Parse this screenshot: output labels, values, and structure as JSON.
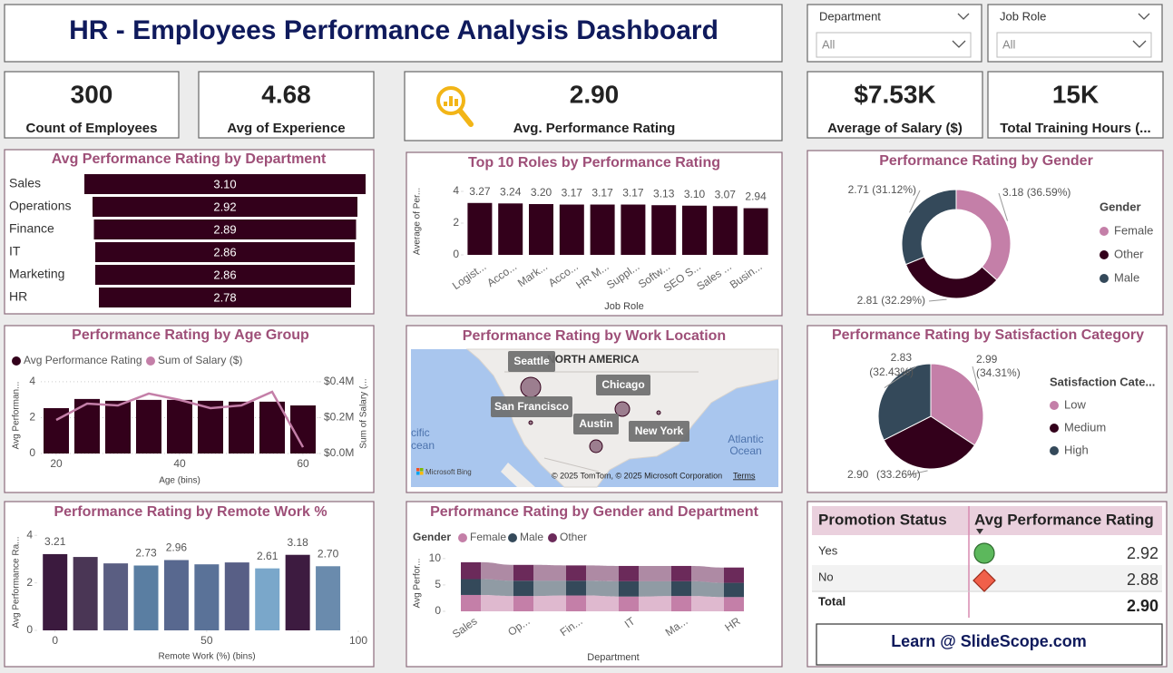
{
  "header": {
    "title": "HR - Employees Performance Analysis Dashboard"
  },
  "slicers": [
    {
      "label": "Department",
      "value": "All"
    },
    {
      "label": "Job Role",
      "value": "All"
    }
  ],
  "kpis": [
    {
      "value": "300",
      "label": "Count of Employees"
    },
    {
      "value": "4.68",
      "label": "Avg of Experience"
    },
    {
      "value": "2.90",
      "label": "Avg. Performance Rating"
    },
    {
      "value": "$7.53K",
      "label": "Average of Salary ($)"
    },
    {
      "value": "15K",
      "label": "Total Training Hours (..."
    }
  ],
  "chart_data": [
    {
      "type": "funnel",
      "title": "Avg Performance Rating by Department",
      "categories": [
        "Sales",
        "Operations",
        "Finance",
        "IT",
        "Marketing",
        "HR"
      ],
      "values": [
        3.1,
        2.92,
        2.89,
        2.86,
        2.86,
        2.78
      ],
      "value_labels": [
        "3.10",
        "2.92",
        "2.89",
        "2.86",
        "2.86",
        "2.78"
      ],
      "color": "#33001b"
    },
    {
      "type": "bar",
      "title": "Top 10 Roles by Performance Rating",
      "x_label": "Job Role",
      "y_label": "Average of Per...",
      "categories": [
        "Logist...",
        "Acco...",
        "Mark...",
        "Acco...",
        "HR M...",
        "Suppl...",
        "Softw...",
        "SEO S...",
        "Sales ...",
        "Busin..."
      ],
      "values": [
        3.27,
        3.24,
        3.2,
        3.17,
        3.17,
        3.17,
        3.13,
        3.1,
        3.07,
        2.94
      ],
      "value_labels": [
        "3.27",
        "3.24",
        "3.20",
        "3.17",
        "3.17",
        "3.17",
        "3.13",
        "3.10",
        "3.07",
        "2.94"
      ],
      "color": "#33001b",
      "ylim": [
        0,
        4.4
      ],
      "yticks": [
        0,
        2,
        4
      ]
    },
    {
      "type": "donut",
      "title": "Performance Rating by Gender",
      "legend_title": "Gender",
      "categories": [
        "Female",
        "Other",
        "Male"
      ],
      "values": [
        3.18,
        2.81,
        2.71
      ],
      "value_labels": [
        "3.18 (36.59%)",
        "2.81 (32.29%)",
        "2.71 (31.12%)"
      ],
      "colors": [
        "#c47fa8",
        "#33001b",
        "#34495a"
      ],
      "legend": "right"
    },
    {
      "type": "combo",
      "title": "Performance Rating by Age Group",
      "x_label": "Age (bins)",
      "y_label": "Avg Performan...",
      "y2_label": "Sum of Salary (...",
      "x": [
        20,
        25,
        30,
        35,
        40,
        45,
        50,
        55,
        60
      ],
      "series": [
        {
          "name": "Avg Performance Rating",
          "color": "#33001b",
          "kind": "bar",
          "values": [
            2.53,
            3.04,
            2.94,
            2.99,
            2.99,
            2.94,
            2.89,
            2.89,
            2.68
          ]
        },
        {
          "name": "Sum of Salary ($)",
          "color": "#c47fa8",
          "kind": "line",
          "axis": "y2",
          "values": [
            187000,
            278000,
            268000,
            334000,
            299000,
            253000,
            268000,
            344000,
            35000
          ]
        }
      ],
      "xlim": [
        17.5,
        62.5
      ],
      "xticks": [
        20,
        40,
        60
      ],
      "ylim": [
        0,
        4.4
      ],
      "yticks": [
        0,
        2,
        4
      ],
      "y2lim": [
        0,
        440000
      ],
      "y2ticks": [
        {
          "value": 0,
          "label": "$0.0M"
        },
        {
          "value": 200000,
          "label": "$0.2M"
        },
        {
          "value": 400000,
          "label": "$0.4M"
        }
      ],
      "grid": true,
      "legend": "top"
    },
    {
      "type": "map",
      "title": "Performance Rating by Work Location",
      "locations": [
        "Seattle",
        "San Francisco",
        "Chicago",
        "Austin",
        "New York"
      ],
      "map_labels": [
        "NORTH AMERICA",
        "cific",
        "cean",
        "Atlantic",
        "Ocean"
      ],
      "logo": "Microsoft Bing",
      "attribution": "© 2025 TomTom, © 2025 Microsoft Corporation",
      "terms": "Terms"
    },
    {
      "type": "pie",
      "title": "Performance Rating by Satisfaction Category",
      "legend_title": "Satisfaction Cate...",
      "categories": [
        "Low",
        "Medium",
        "High"
      ],
      "values": [
        2.99,
        2.9,
        2.83
      ],
      "value_labels": [
        "2.99",
        "2.90",
        "2.83"
      ],
      "percent_labels": [
        "(34.31%)",
        "(33.26%)",
        "(32.43%)"
      ],
      "colors": [
        "#c47fa8",
        "#33001b",
        "#34495a"
      ],
      "legend": "right"
    },
    {
      "type": "bar",
      "title": "Performance Rating by Remote Work %",
      "x_label": "Remote Work (%) (bins)",
      "y_label": "Avg Performance Ra...",
      "x": [
        0,
        10,
        20,
        30,
        40,
        50,
        60,
        70,
        80,
        90
      ],
      "values": [
        3.21,
        3.09,
        2.82,
        2.73,
        2.96,
        2.78,
        2.86,
        2.61,
        3.18,
        2.7
      ],
      "value_labels": [
        "3.21",
        null,
        null,
        "2.73",
        "2.96",
        null,
        null,
        "2.61",
        "3.18",
        "2.70"
      ],
      "colors": [
        "#3b1a3e",
        "#4a3655",
        "#5a5e82",
        "#5a7ea2",
        "#58688f",
        "#5a7298",
        "#585f86",
        "#7aa7ca",
        "#3d1b40",
        "#6a8bad"
      ],
      "xlim": [
        -5,
        100
      ],
      "xticks": [
        0,
        50,
        100
      ],
      "ylim": [
        0,
        4.2
      ],
      "yticks": [
        0,
        2,
        4
      ]
    },
    {
      "type": "ribbon",
      "title": "Performance Rating by Gender and Department",
      "legend_title": "Gender",
      "x_label": "Department",
      "y_label": "Avg Perfor...",
      "categories": [
        "Sales",
        "Op...",
        "Fin...",
        "IT",
        "Ma...",
        "HR"
      ],
      "series": [
        {
          "name": "Female",
          "color": "#c47fa8",
          "values": [
            3.1,
            2.9,
            3.0,
            2.8,
            2.9,
            2.7
          ]
        },
        {
          "name": "Male",
          "color": "#34495a",
          "values": [
            3.0,
            2.9,
            2.8,
            2.9,
            2.8,
            2.7
          ]
        },
        {
          "name": "Other",
          "color": "#6b2a5a",
          "values": [
            3.2,
            3.0,
            2.9,
            2.9,
            2.9,
            2.9
          ]
        }
      ],
      "ylim": [
        0,
        11
      ],
      "yticks": [
        0,
        5,
        10
      ],
      "legend": "top"
    }
  ],
  "table": {
    "columns": [
      "Promotion Status",
      "Avg Performance Rating"
    ],
    "rows": [
      [
        "Yes",
        "2.92"
      ],
      [
        "No",
        "2.88"
      ]
    ],
    "total": [
      "Total",
      "2.90"
    ]
  },
  "footer": {
    "text": "Learn @ SlideScope.com"
  }
}
